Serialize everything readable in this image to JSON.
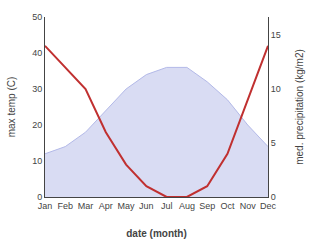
{
  "chart_data": {
    "type": "line",
    "xlabel": "date (month)",
    "ylabel": "max temp (C)",
    "y2label": "med. precipitation (kg/m2)",
    "categories": [
      "Jan",
      "Feb",
      "Mar",
      "Apr",
      "May",
      "Jun",
      "Jul",
      "Aug",
      "Sep",
      "Oct",
      "Nov",
      "Dec"
    ],
    "series": [
      {
        "type": "area",
        "color": "#b3b9e8",
        "values": [
          12,
          14,
          18,
          24,
          30,
          34,
          36,
          36,
          32,
          27,
          20,
          14
        ]
      },
      {
        "type": "line",
        "color": "#c03030",
        "axis": "y2",
        "values": [
          14,
          12,
          10,
          6,
          3,
          1,
          0,
          0,
          1,
          4,
          9,
          14
        ]
      }
    ],
    "ylim": [
      0,
      50
    ],
    "yticks": [
      0,
      10,
      20,
      30,
      40,
      50
    ],
    "y2lim": [
      0,
      16.67
    ],
    "y2ticks": [
      0,
      5,
      10,
      15
    ],
    "grid": false
  }
}
